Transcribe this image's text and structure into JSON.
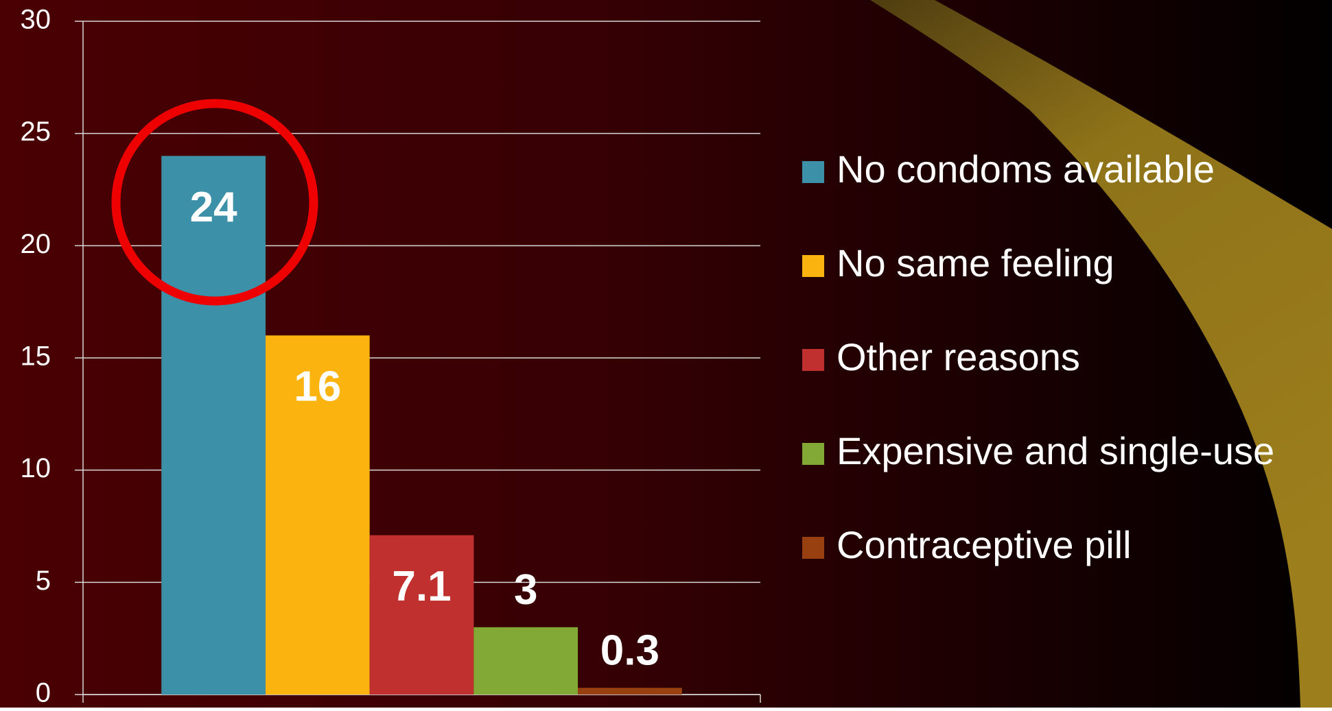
{
  "chart_data": {
    "type": "bar",
    "categories": [
      null
    ],
    "series": [
      {
        "name": "No condoms available",
        "color": "#3c91a8",
        "values": [
          24
        ]
      },
      {
        "name": "No same feeling",
        "color": "#fbb40f",
        "values": [
          16
        ]
      },
      {
        "name": "Other reasons",
        "color": "#c0302e",
        "values": [
          7.1
        ]
      },
      {
        "name": "Expensive and single-use",
        "color": "#82a935",
        "values": [
          3
        ]
      },
      {
        "name": "Contraceptive pill",
        "color": "#994010",
        "values": [
          0.3
        ]
      }
    ],
    "ylim": [
      0,
      30
    ],
    "yticks": [
      0,
      5,
      10,
      15,
      20,
      25,
      30
    ],
    "grid": true,
    "legend": "right"
  }
}
